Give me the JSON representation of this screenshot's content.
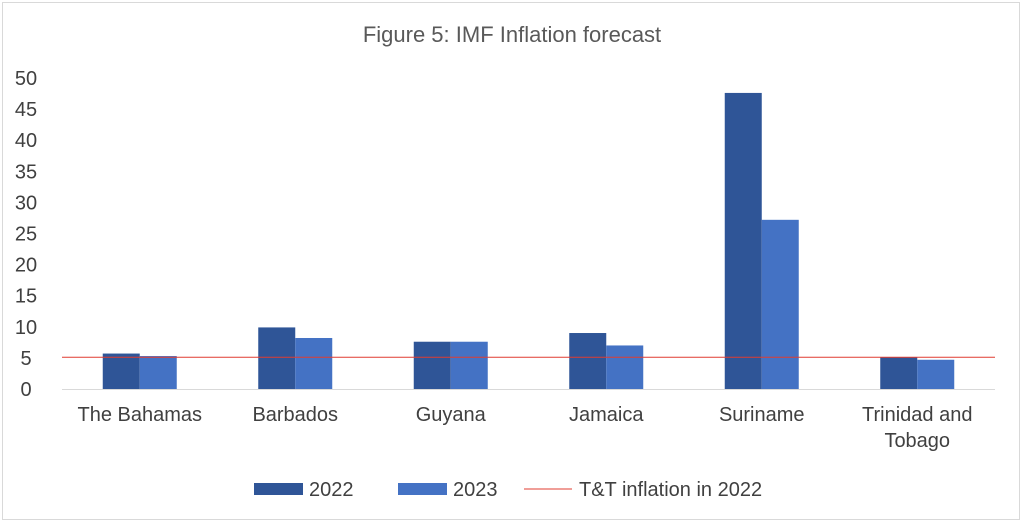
{
  "chart_data": {
    "type": "bar",
    "title": "Figure 5: IMF Inflation forecast",
    "categories": [
      "The Bahamas",
      "Barbados",
      "Guyana",
      "Jamaica",
      "Suriname",
      "Trinidad and Tobago"
    ],
    "series": [
      {
        "name": "2022",
        "color": "#2f5597",
        "values": [
          5.7,
          9.9,
          7.6,
          9.0,
          47.6,
          5.1
        ]
      },
      {
        "name": "2023",
        "color": "#4472c4",
        "values": [
          5.3,
          8.2,
          7.6,
          7.0,
          27.2,
          4.7
        ]
      }
    ],
    "reference_line": {
      "name": "T&T inflation in 2022",
      "value": 5.1,
      "color": "#e03c31"
    },
    "ylim": [
      0,
      50
    ],
    "yticks": [
      0,
      5,
      10,
      15,
      20,
      25,
      30,
      35,
      40,
      45,
      50
    ],
    "xlabel": "",
    "ylabel": "",
    "legend": "bottom"
  }
}
